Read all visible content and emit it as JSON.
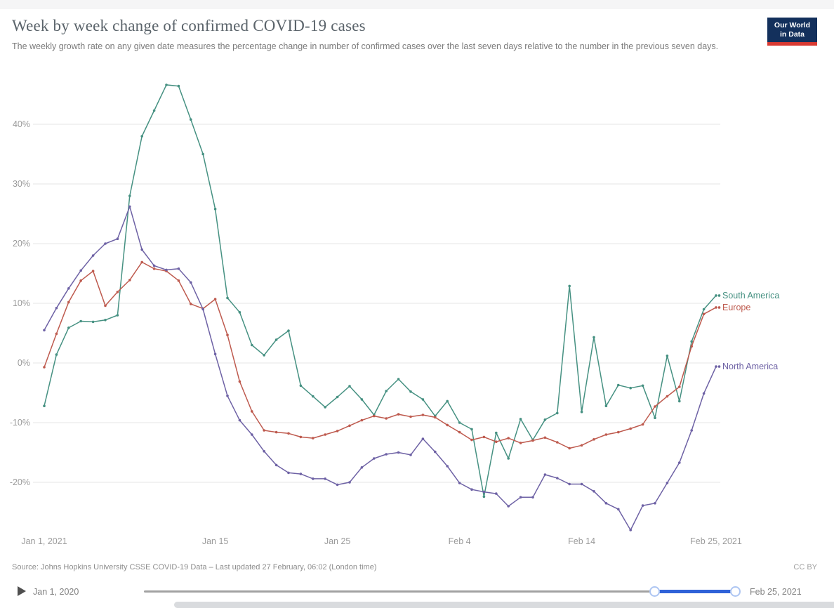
{
  "header": {
    "title": "Week by week change of confirmed COVID-19 cases",
    "subtitle": "The weekly growth rate on any given date measures the percentage change in number of confirmed cases over the last seven days relative to the number in the previous seven days.",
    "logo": {
      "line1": "Our World",
      "line2": "in Data"
    }
  },
  "chart_data": {
    "type": "line",
    "title": "Week by week change of confirmed COVID-19 cases",
    "x_start": "Jan 1, 2021",
    "x_end": "Feb 25, 2021",
    "x_unit": "day",
    "x_tick_labels": [
      {
        "day": 0,
        "label": "Jan 1, 2021"
      },
      {
        "day": 14,
        "label": "Jan 15"
      },
      {
        "day": 24,
        "label": "Jan 25"
      },
      {
        "day": 34,
        "label": "Feb 4"
      },
      {
        "day": 44,
        "label": "Feb 14"
      },
      {
        "day": 55,
        "label": "Feb 25, 2021"
      }
    ],
    "y_ticks": [
      {
        "value": 40,
        "label": "40%"
      },
      {
        "value": 30,
        "label": "30%"
      },
      {
        "value": 20,
        "label": "20%"
      },
      {
        "value": 10,
        "label": "10%"
      },
      {
        "value": 0,
        "label": "0%"
      },
      {
        "value": -10,
        "label": "-10%"
      },
      {
        "value": -20,
        "label": "-20%"
      }
    ],
    "ylim": [
      -29,
      47
    ],
    "grid": true,
    "legend_position": "right-end-labels",
    "series": [
      {
        "name": "South America",
        "color": "#469182",
        "values": [
          -7.2,
          1.4,
          5.9,
          7.0,
          6.9,
          7.2,
          8.0,
          28.0,
          38.0,
          42.3,
          46.6,
          46.4,
          40.8,
          35.0,
          25.8,
          10.9,
          8.5,
          3.0,
          1.3,
          3.9,
          5.4,
          -3.8,
          -5.6,
          -7.4,
          -5.7,
          -3.9,
          -6.1,
          -8.7,
          -4.7,
          -2.7,
          -4.8,
          -6.1,
          -8.9,
          -6.4,
          -10.0,
          -11.1,
          -22.4,
          -11.7,
          -16.0,
          -9.4,
          -12.9,
          -9.5,
          -8.4,
          12.9,
          -8.2,
          4.3,
          -7.2,
          -3.7,
          -4.2,
          -3.8,
          -9.2,
          1.2,
          -6.4,
          3.6,
          9.0,
          11.3
        ]
      },
      {
        "name": "Europe",
        "color": "#be5a4e",
        "values": [
          -0.7,
          4.9,
          10.2,
          13.8,
          15.4,
          9.6,
          11.9,
          13.9,
          16.9,
          15.8,
          15.4,
          13.8,
          9.9,
          9.1,
          10.7,
          4.7,
          -3.1,
          -8.1,
          -11.3,
          -11.6,
          -11.8,
          -12.4,
          -12.6,
          -12.0,
          -11.4,
          -10.5,
          -9.6,
          -8.9,
          -9.3,
          -8.6,
          -9.0,
          -8.7,
          -9.1,
          -10.4,
          -11.6,
          -12.9,
          -12.4,
          -13.2,
          -12.6,
          -13.4,
          -13.0,
          -12.5,
          -13.3,
          -14.3,
          -13.8,
          -12.8,
          -12.0,
          -11.6,
          -11.0,
          -10.3,
          -7.3,
          -5.6,
          -4.0,
          2.8,
          8.2,
          9.3
        ]
      },
      {
        "name": "North America",
        "color": "#6e62a5",
        "values": [
          5.5,
          9.2,
          12.5,
          15.5,
          18.0,
          20.0,
          20.8,
          26.2,
          19.0,
          16.3,
          15.6,
          15.8,
          13.5,
          9.0,
          1.5,
          -5.5,
          -9.6,
          -12.0,
          -14.8,
          -17.1,
          -18.4,
          -18.6,
          -19.4,
          -19.4,
          -20.4,
          -20.0,
          -17.5,
          -16.0,
          -15.3,
          -15.0,
          -15.4,
          -12.7,
          -14.9,
          -17.3,
          -20.1,
          -21.2,
          -21.6,
          -21.9,
          -24.0,
          -22.5,
          -22.5,
          -18.7,
          -19.3,
          -20.3,
          -20.3,
          -21.5,
          -23.5,
          -24.5,
          -28.0,
          -23.9,
          -23.5,
          -20.1,
          -16.7,
          -11.3,
          -5.1,
          -0.6
        ]
      }
    ]
  },
  "footer": {
    "source": "Source: Johns Hopkins University CSSE COVID-19 Data – Last updated 27 February, 06:02 (London time)",
    "license": "CC BY"
  },
  "timeline": {
    "start_label": "Jan 1, 2020",
    "end_label": "Feb 25, 2021",
    "range_start_pct": 85.5,
    "range_end_pct": 99.0,
    "accent_color": "#2f62d8"
  }
}
